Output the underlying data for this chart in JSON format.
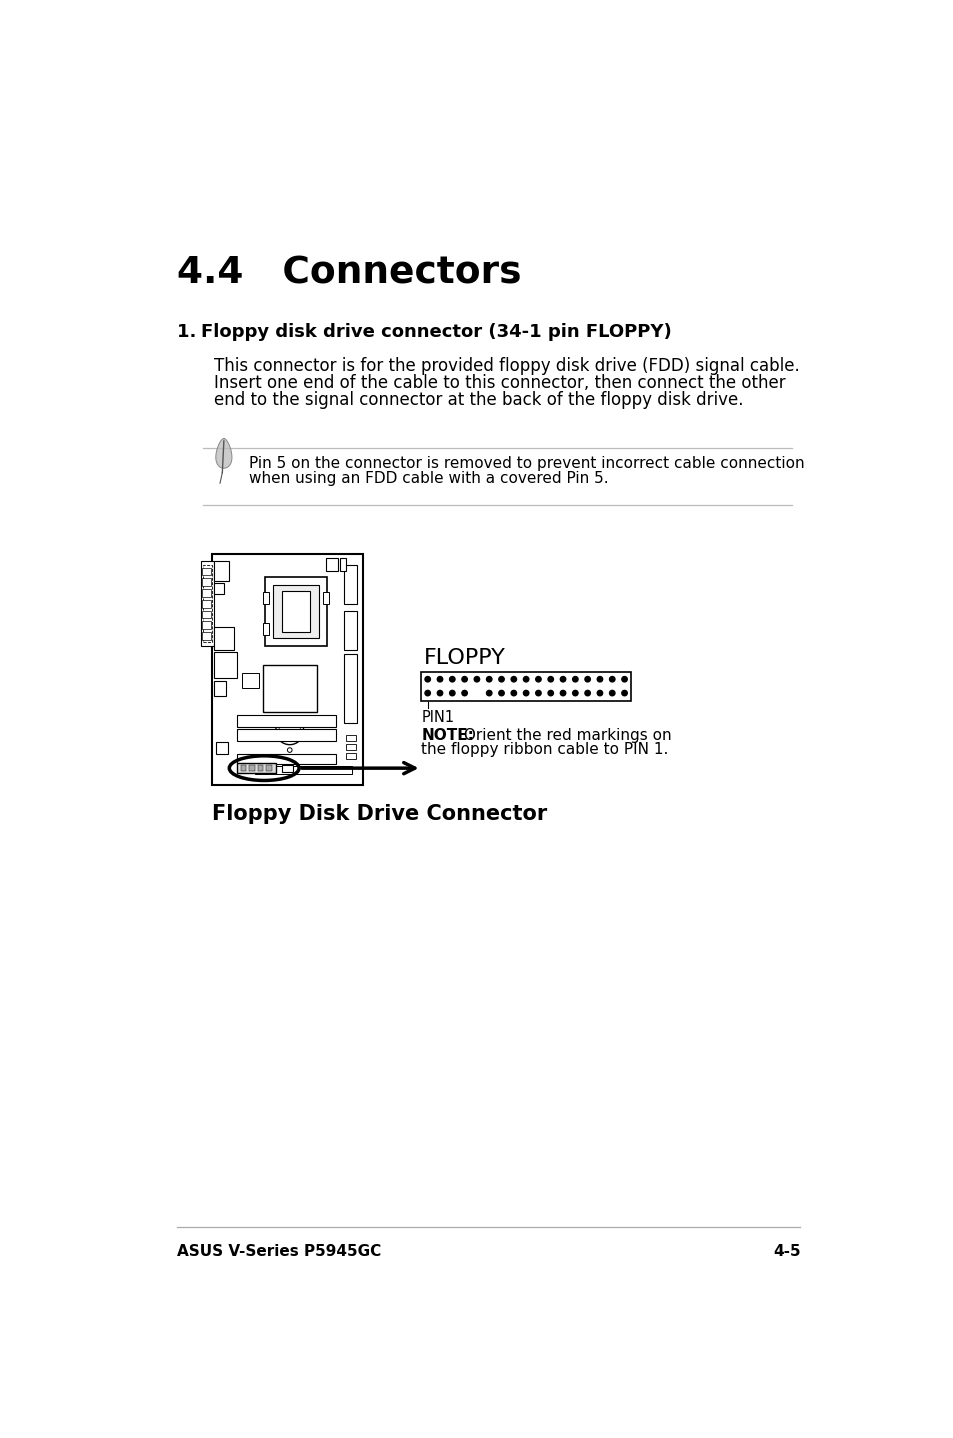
{
  "bg_color": "#ffffff",
  "title": "4.4   Connectors",
  "section_num": "1.",
  "section_heading": "Floppy disk drive connector (34‑1 pin FLOPPY)",
  "body_line1": "This connector is for the provided floppy disk drive (FDD) signal cable.",
  "body_line2": "Insert one end of the cable to this connector, then connect the other",
  "body_line3": "end to the signal connector at the back of the floppy disk drive.",
  "note_text_line1": "Pin 5 on the connector is removed to prevent incorrect cable connection",
  "note_text_line2": "when using an FDD cable with a covered Pin 5.",
  "floppy_label": "FLOPPY",
  "pin1_label": "PIN1",
  "note_bold": "NOTE:",
  "note_detail": " Orient the red markings on",
  "note_detail2": "the floppy ribbon cable to PIN 1.",
  "diagram_caption": "Floppy Disk Drive Connector",
  "footer_left": "ASUS V-Series P5945GC",
  "footer_right": "4-5"
}
